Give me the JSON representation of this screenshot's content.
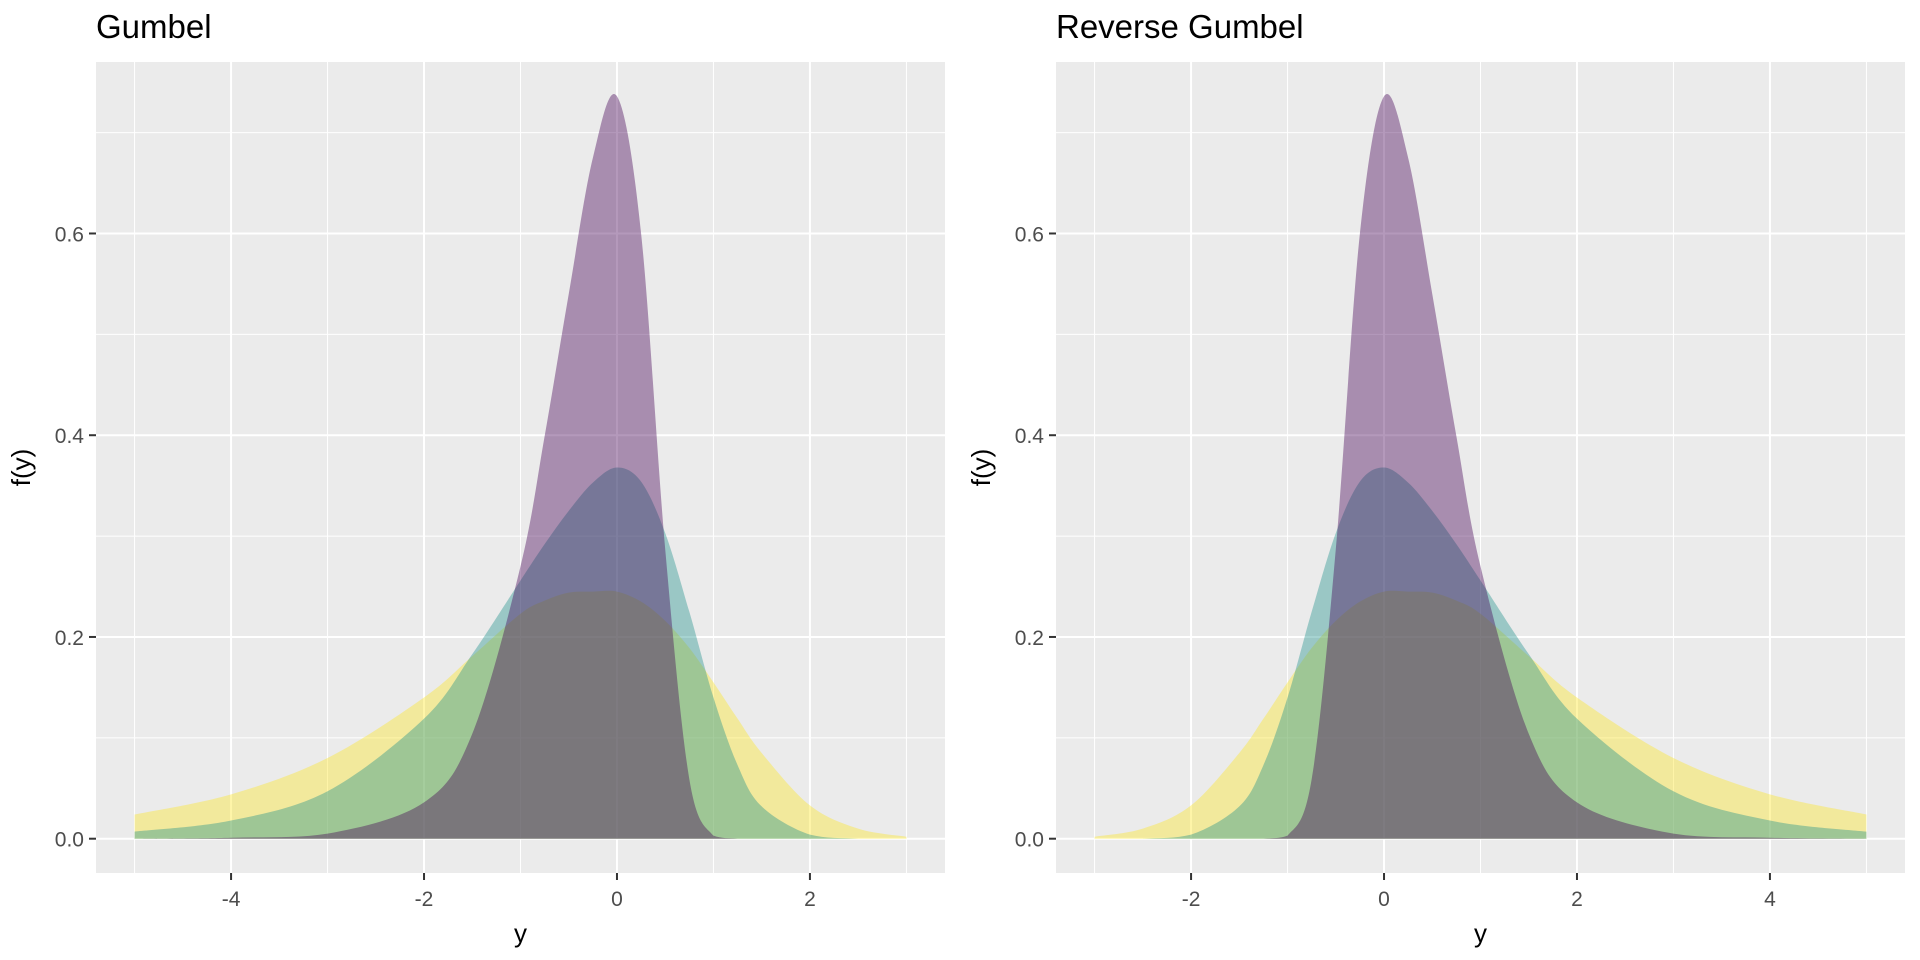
{
  "chart_data": [
    {
      "type": "area",
      "title": "Gumbel",
      "xlabel": "y",
      "ylabel": "f(y)",
      "xlim": [
        -5.4,
        3.4
      ],
      "ylim": [
        -0.034,
        0.77
      ],
      "x_ticks": [
        -4,
        -2,
        0,
        2
      ],
      "y_ticks": [
        0.0,
        0.2,
        0.4,
        0.6
      ],
      "x_tick_labels": [
        "-4",
        "-2",
        "0",
        "2"
      ],
      "y_tick_labels": [
        "0.0",
        "0.2",
        "0.4",
        "0.6"
      ],
      "grid": true,
      "legend": "none",
      "x": [
        -5.0,
        -4.0,
        -3.0,
        -2.0,
        -1.5,
        -1.0,
        -0.75,
        -0.5,
        -0.25,
        0.0,
        0.25,
        0.5,
        0.75,
        1.0,
        1.25,
        1.5,
        2.0,
        2.5,
        3.0
      ],
      "series": [
        {
          "color": "#FDE725",
          "values": [
            0.024,
            0.044,
            0.08,
            0.14,
            0.181,
            0.223,
            0.236,
            0.244,
            0.245,
            0.245,
            0.235,
            0.216,
            0.189,
            0.155,
            0.119,
            0.085,
            0.033,
            0.01,
            0.002
          ]
        },
        {
          "color": "#21918C",
          "values": [
            0.007,
            0.018,
            0.047,
            0.119,
            0.183,
            0.256,
            0.292,
            0.325,
            0.353,
            0.368,
            0.354,
            0.303,
            0.225,
            0.14,
            0.073,
            0.032,
            0.004,
            0.0,
            0.0
          ]
        },
        {
          "color": "#440154",
          "values": [
            0.0,
            0.001,
            0.005,
            0.036,
            0.104,
            0.27,
            0.399,
            0.54,
            0.675,
            0.736,
            0.6,
            0.287,
            0.059,
            0.003,
            0.0,
            0.0,
            0.0,
            0.0,
            0.0
          ]
        }
      ]
    },
    {
      "type": "area",
      "title": "Reverse Gumbel",
      "xlabel": "y",
      "ylabel": "f(y)",
      "xlim": [
        -3.4,
        5.4
      ],
      "ylim": [
        -0.034,
        0.77
      ],
      "x_ticks": [
        -2,
        0,
        2,
        4
      ],
      "y_ticks": [
        0.0,
        0.2,
        0.4,
        0.6
      ],
      "x_tick_labels": [
        "-2",
        "0",
        "2",
        "4"
      ],
      "y_tick_labels": [
        "0.0",
        "0.2",
        "0.4",
        "0.6"
      ],
      "grid": true,
      "legend": "none",
      "x": [
        -3.0,
        -2.5,
        -2.0,
        -1.5,
        -1.25,
        -1.0,
        -0.75,
        -0.5,
        -0.25,
        0.0,
        0.25,
        0.5,
        0.75,
        1.0,
        1.5,
        2.0,
        3.0,
        4.0,
        5.0
      ],
      "series": [
        {
          "color": "#FDE725",
          "values": [
            0.002,
            0.01,
            0.033,
            0.085,
            0.119,
            0.155,
            0.189,
            0.216,
            0.235,
            0.245,
            0.245,
            0.244,
            0.236,
            0.223,
            0.181,
            0.14,
            0.08,
            0.044,
            0.024
          ]
        },
        {
          "color": "#21918C",
          "values": [
            0.0,
            0.0,
            0.004,
            0.032,
            0.073,
            0.14,
            0.225,
            0.303,
            0.354,
            0.368,
            0.353,
            0.325,
            0.292,
            0.256,
            0.183,
            0.119,
            0.047,
            0.018,
            0.007
          ]
        },
        {
          "color": "#440154",
          "values": [
            0.0,
            0.0,
            0.0,
            0.0,
            0.0,
            0.003,
            0.059,
            0.287,
            0.6,
            0.736,
            0.675,
            0.54,
            0.399,
            0.27,
            0.104,
            0.036,
            0.005,
            0.001,
            0.0
          ]
        }
      ]
    }
  ]
}
